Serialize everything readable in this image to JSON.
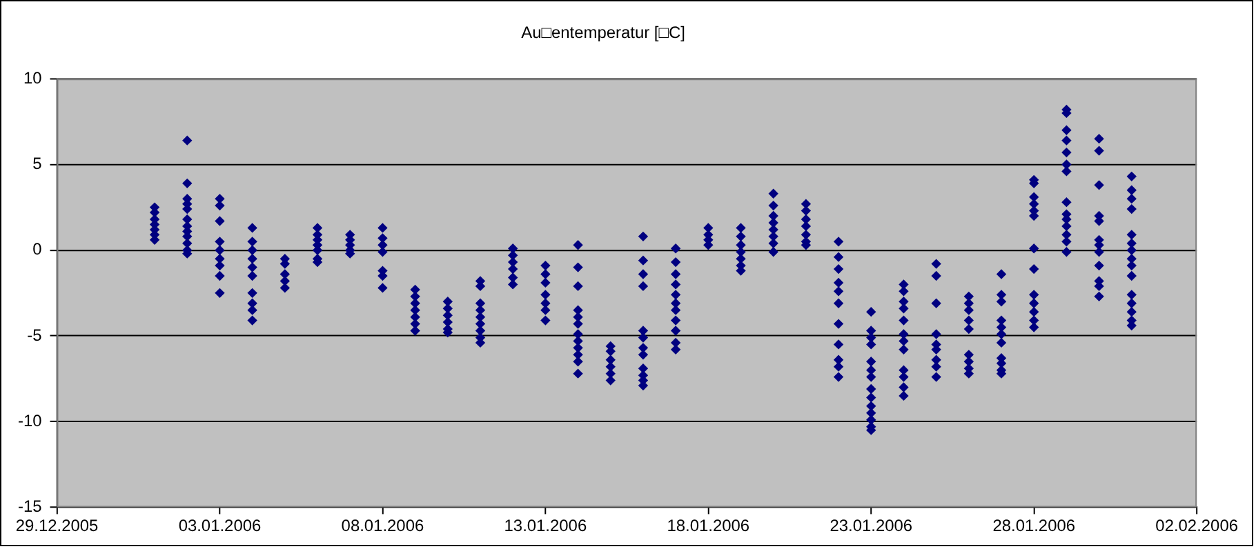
{
  "chart_data": {
    "type": "scatter",
    "title": "Au□entemperatur [□C]",
    "marker": "diamond",
    "grid": "y",
    "legend": false,
    "xlim": [
      "2005-12-29",
      "2006-02-02"
    ],
    "xticks": [
      {
        "value": "2005-12-29",
        "label": "29.12.2005"
      },
      {
        "value": "2006-01-03",
        "label": "03.01.2006"
      },
      {
        "value": "2006-01-08",
        "label": "08.01.2006"
      },
      {
        "value": "2006-01-13",
        "label": "13.01.2006"
      },
      {
        "value": "2006-01-18",
        "label": "18.01.2006"
      },
      {
        "value": "2006-01-23",
        "label": "23.01.2006"
      },
      {
        "value": "2006-01-28",
        "label": "28.01.2006"
      },
      {
        "value": "2006-02-02",
        "label": "02.02.2006"
      }
    ],
    "ylim": [
      -15,
      10
    ],
    "yticks": [
      -15,
      -10,
      -5,
      0,
      5,
      10
    ],
    "series": [
      {
        "color": "#000080",
        "x": [
          "2006-01-01",
          "2006-01-01",
          "2006-01-01",
          "2006-01-01",
          "2006-01-01",
          "2006-01-01",
          "2006-01-01"
        ],
        "values": [
          2.5,
          2.2,
          1.8,
          1.5,
          1.2,
          0.9,
          0.6
        ]
      },
      {
        "color": "#000080",
        "x": [
          "2006-01-02",
          "2006-01-02",
          "2006-01-02",
          "2006-01-02",
          "2006-01-02",
          "2006-01-02",
          "2006-01-02",
          "2006-01-02",
          "2006-01-02",
          "2006-01-02",
          "2006-01-02",
          "2006-01-02"
        ],
        "values": [
          6.4,
          3.9,
          3.0,
          2.7,
          2.4,
          1.8,
          1.4,
          1.1,
          0.8,
          0.4,
          0,
          -0.2
        ]
      },
      {
        "color": "#000080",
        "x": [
          "2006-01-03",
          "2006-01-03",
          "2006-01-03",
          "2006-01-03",
          "2006-01-03",
          "2006-01-03",
          "2006-01-03",
          "2006-01-03",
          "2006-01-03"
        ],
        "values": [
          3.0,
          2.6,
          1.7,
          0.5,
          0,
          -0.5,
          -0.9,
          -1.5,
          -2.5
        ]
      },
      {
        "color": "#000080",
        "x": [
          "2006-01-04",
          "2006-01-04",
          "2006-01-04",
          "2006-01-04",
          "2006-01-04",
          "2006-01-04",
          "2006-01-04",
          "2006-01-04",
          "2006-01-04",
          "2006-01-04"
        ],
        "values": [
          1.3,
          0.5,
          0,
          -0.5,
          -1.0,
          -1.5,
          -2.5,
          -3.1,
          -3.5,
          -4.1
        ]
      },
      {
        "color": "#000080",
        "x": [
          "2006-01-05",
          "2006-01-05",
          "2006-01-05",
          "2006-01-05",
          "2006-01-05"
        ],
        "values": [
          -0.5,
          -0.8,
          -1.4,
          -1.8,
          -2.2
        ]
      },
      {
        "color": "#000080",
        "x": [
          "2006-01-06",
          "2006-01-06",
          "2006-01-06",
          "2006-01-06",
          "2006-01-06",
          "2006-01-06",
          "2006-01-06"
        ],
        "values": [
          1.3,
          0.9,
          0.6,
          0.3,
          0,
          -0.5,
          -0.7
        ]
      },
      {
        "color": "#000080",
        "x": [
          "2006-01-07",
          "2006-01-07",
          "2006-01-07",
          "2006-01-07",
          "2006-01-07"
        ],
        "values": [
          0.9,
          0.6,
          0.3,
          0,
          -0.2
        ]
      },
      {
        "color": "#000080",
        "x": [
          "2006-01-08",
          "2006-01-08",
          "2006-01-08",
          "2006-01-08",
          "2006-01-08",
          "2006-01-08",
          "2006-01-08"
        ],
        "values": [
          1.3,
          0.7,
          0.3,
          -0.1,
          -1.2,
          -1.5,
          -2.2
        ]
      },
      {
        "color": "#000080",
        "x": [
          "2006-01-09",
          "2006-01-09",
          "2006-01-09",
          "2006-01-09",
          "2006-01-09",
          "2006-01-09",
          "2006-01-09"
        ],
        "values": [
          -2.3,
          -2.7,
          -3.1,
          -3.5,
          -3.9,
          -4.3,
          -4.7
        ]
      },
      {
        "color": "#000080",
        "x": [
          "2006-01-10",
          "2006-01-10",
          "2006-01-10",
          "2006-01-10",
          "2006-01-10",
          "2006-01-10"
        ],
        "values": [
          -3.0,
          -3.4,
          -3.8,
          -4.2,
          -4.6,
          -4.8
        ]
      },
      {
        "color": "#000080",
        "x": [
          "2006-01-11",
          "2006-01-11",
          "2006-01-11",
          "2006-01-11",
          "2006-01-11",
          "2006-01-11",
          "2006-01-11",
          "2006-01-11",
          "2006-01-11"
        ],
        "values": [
          -1.8,
          -2.1,
          -3.1,
          -3.5,
          -3.9,
          -4.3,
          -4.7,
          -5.1,
          -5.4
        ]
      },
      {
        "color": "#000080",
        "x": [
          "2006-01-12",
          "2006-01-12",
          "2006-01-12",
          "2006-01-12",
          "2006-01-12",
          "2006-01-12"
        ],
        "values": [
          0.1,
          -0.3,
          -0.7,
          -1.1,
          -1.6,
          -2.0
        ]
      },
      {
        "color": "#000080",
        "x": [
          "2006-01-13",
          "2006-01-13",
          "2006-01-13",
          "2006-01-13",
          "2006-01-13",
          "2006-01-13",
          "2006-01-13"
        ],
        "values": [
          -0.9,
          -1.4,
          -1.9,
          -2.6,
          -3.1,
          -3.5,
          -4.1
        ]
      },
      {
        "color": "#000080",
        "x": [
          "2006-01-14",
          "2006-01-14",
          "2006-01-14",
          "2006-01-14",
          "2006-01-14",
          "2006-01-14",
          "2006-01-14",
          "2006-01-14",
          "2006-01-14",
          "2006-01-14",
          "2006-01-14",
          "2006-01-14"
        ],
        "values": [
          0.3,
          -1.0,
          -2.1,
          -3.5,
          -3.9,
          -4.3,
          -4.9,
          -5.3,
          -5.7,
          -6.1,
          -6.5,
          -7.2
        ]
      },
      {
        "color": "#000080",
        "x": [
          "2006-01-15",
          "2006-01-15",
          "2006-01-15",
          "2006-01-15",
          "2006-01-15",
          "2006-01-15"
        ],
        "values": [
          -5.6,
          -5.9,
          -6.4,
          -6.8,
          -7.2,
          -7.6
        ]
      },
      {
        "color": "#000080",
        "x": [
          "2006-01-16",
          "2006-01-16",
          "2006-01-16",
          "2006-01-16",
          "2006-01-16",
          "2006-01-16",
          "2006-01-16",
          "2006-01-16",
          "2006-01-16",
          "2006-01-16",
          "2006-01-16",
          "2006-01-16"
        ],
        "values": [
          0.8,
          -0.6,
          -1.4,
          -2.1,
          -4.7,
          -5.1,
          -5.7,
          -6.1,
          -6.9,
          -7.3,
          -7.6,
          -7.9
        ]
      },
      {
        "color": "#000080",
        "x": [
          "2006-01-17",
          "2006-01-17",
          "2006-01-17",
          "2006-01-17",
          "2006-01-17",
          "2006-01-17",
          "2006-01-17",
          "2006-01-17",
          "2006-01-17",
          "2006-01-17",
          "2006-01-17"
        ],
        "values": [
          0.1,
          -0.7,
          -1.4,
          -2.0,
          -2.6,
          -3.1,
          -3.5,
          -4.1,
          -4.7,
          -5.4,
          -5.8
        ]
      },
      {
        "color": "#000080",
        "x": [
          "2006-01-18",
          "2006-01-18",
          "2006-01-18",
          "2006-01-18"
        ],
        "values": [
          1.3,
          0.9,
          0.6,
          0.3
        ]
      },
      {
        "color": "#000080",
        "x": [
          "2006-01-19",
          "2006-01-19",
          "2006-01-19",
          "2006-01-19",
          "2006-01-19",
          "2006-01-19",
          "2006-01-19"
        ],
        "values": [
          1.3,
          0.8,
          0.3,
          -0.1,
          -0.5,
          -0.9,
          -1.2
        ]
      },
      {
        "color": "#000080",
        "x": [
          "2006-01-20",
          "2006-01-20",
          "2006-01-20",
          "2006-01-20",
          "2006-01-20",
          "2006-01-20",
          "2006-01-20",
          "2006-01-20"
        ],
        "values": [
          3.3,
          2.6,
          2.0,
          1.6,
          1.2,
          0.8,
          0.4,
          -0.1
        ]
      },
      {
        "color": "#000080",
        "x": [
          "2006-01-21",
          "2006-01-21",
          "2006-01-21",
          "2006-01-21",
          "2006-01-21",
          "2006-01-21",
          "2006-01-21"
        ],
        "values": [
          2.7,
          2.3,
          1.8,
          1.4,
          0.9,
          0.5,
          0.3
        ]
      },
      {
        "color": "#000080",
        "x": [
          "2006-01-22",
          "2006-01-22",
          "2006-01-22",
          "2006-01-22",
          "2006-01-22",
          "2006-01-22",
          "2006-01-22",
          "2006-01-22",
          "2006-01-22",
          "2006-01-22",
          "2006-01-22"
        ],
        "values": [
          0.5,
          -0.4,
          -1.1,
          -1.9,
          -2.4,
          -3.1,
          -4.3,
          -5.5,
          -6.4,
          -6.8,
          -7.4
        ]
      },
      {
        "color": "#000080",
        "x": [
          "2006-01-23",
          "2006-01-23",
          "2006-01-23",
          "2006-01-23",
          "2006-01-23",
          "2006-01-23",
          "2006-01-23",
          "2006-01-23",
          "2006-01-23",
          "2006-01-23",
          "2006-01-23",
          "2006-01-23",
          "2006-01-23",
          "2006-01-23"
        ],
        "values": [
          -3.6,
          -4.7,
          -5.1,
          -5.5,
          -6.5,
          -7.0,
          -7.4,
          -8.1,
          -8.6,
          -9.1,
          -9.5,
          -9.9,
          -10.3,
          -10.5
        ]
      },
      {
        "color": "#000080",
        "x": [
          "2006-01-24",
          "2006-01-24",
          "2006-01-24",
          "2006-01-24",
          "2006-01-24",
          "2006-01-24",
          "2006-01-24",
          "2006-01-24",
          "2006-01-24",
          "2006-01-24",
          "2006-01-24",
          "2006-01-24"
        ],
        "values": [
          -2.0,
          -2.4,
          -3.0,
          -3.4,
          -4.1,
          -4.9,
          -5.3,
          -5.8,
          -7.0,
          -7.4,
          -8.0,
          -8.5
        ]
      },
      {
        "color": "#000080",
        "x": [
          "2006-01-25",
          "2006-01-25",
          "2006-01-25",
          "2006-01-25",
          "2006-01-25",
          "2006-01-25",
          "2006-01-25",
          "2006-01-25",
          "2006-01-25"
        ],
        "values": [
          -0.8,
          -1.5,
          -3.1,
          -4.9,
          -5.5,
          -5.8,
          -6.4,
          -6.8,
          -7.4
        ]
      },
      {
        "color": "#000080",
        "x": [
          "2006-01-26",
          "2006-01-26",
          "2006-01-26",
          "2006-01-26",
          "2006-01-26",
          "2006-01-26",
          "2006-01-26",
          "2006-01-26",
          "2006-01-26"
        ],
        "values": [
          -2.7,
          -3.1,
          -3.5,
          -4.1,
          -4.6,
          -6.1,
          -6.5,
          -6.9,
          -7.2
        ]
      },
      {
        "color": "#000080",
        "x": [
          "2006-01-27",
          "2006-01-27",
          "2006-01-27",
          "2006-01-27",
          "2006-01-27",
          "2006-01-27",
          "2006-01-27",
          "2006-01-27",
          "2006-01-27",
          "2006-01-27",
          "2006-01-27"
        ],
        "values": [
          -1.4,
          -2.6,
          -3.0,
          -4.1,
          -4.5,
          -4.9,
          -5.4,
          -6.3,
          -6.6,
          -7.0,
          -7.2
        ]
      },
      {
        "color": "#000080",
        "x": [
          "2006-01-28",
          "2006-01-28",
          "2006-01-28",
          "2006-01-28",
          "2006-01-28",
          "2006-01-28",
          "2006-01-28",
          "2006-01-28",
          "2006-01-28",
          "2006-01-28",
          "2006-01-28",
          "2006-01-28",
          "2006-01-28"
        ],
        "values": [
          4.1,
          3.9,
          3.1,
          2.7,
          2.3,
          2.0,
          0.1,
          -1.1,
          -2.6,
          -3.1,
          -3.6,
          -4.1,
          -4.5
        ]
      },
      {
        "color": "#000080",
        "x": [
          "2006-01-29",
          "2006-01-29",
          "2006-01-29",
          "2006-01-29",
          "2006-01-29",
          "2006-01-29",
          "2006-01-29",
          "2006-01-29",
          "2006-01-29",
          "2006-01-29",
          "2006-01-29",
          "2006-01-29",
          "2006-01-29",
          "2006-01-29"
        ],
        "values": [
          8.2,
          8.0,
          7.0,
          6.4,
          5.7,
          5.0,
          4.6,
          2.8,
          2.1,
          1.8,
          1.4,
          0.9,
          0.5,
          -0.1
        ]
      },
      {
        "color": "#000080",
        "x": [
          "2006-01-30",
          "2006-01-30",
          "2006-01-30",
          "2006-01-30",
          "2006-01-30",
          "2006-01-30",
          "2006-01-30",
          "2006-01-30",
          "2006-01-30",
          "2006-01-30",
          "2006-01-30",
          "2006-01-30"
        ],
        "values": [
          6.5,
          5.8,
          3.8,
          2.0,
          1.7,
          0.6,
          0.3,
          -0.1,
          -0.9,
          -1.8,
          -2.1,
          -2.7
        ]
      },
      {
        "color": "#000080",
        "x": [
          "2006-01-31",
          "2006-01-31",
          "2006-01-31",
          "2006-01-31",
          "2006-01-31",
          "2006-01-31",
          "2006-01-31",
          "2006-01-31",
          "2006-01-31",
          "2006-01-31",
          "2006-01-31",
          "2006-01-31",
          "2006-01-31",
          "2006-01-31",
          "2006-01-31"
        ],
        "values": [
          4.3,
          3.5,
          3.0,
          2.4,
          0.9,
          0.4,
          0,
          -0.5,
          -0.9,
          -1.5,
          -2.6,
          -3.1,
          -3.6,
          -4.1,
          -4.4
        ]
      }
    ]
  }
}
